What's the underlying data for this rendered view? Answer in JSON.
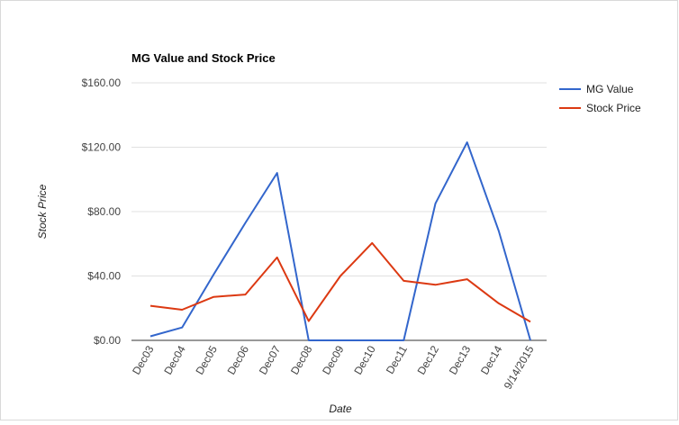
{
  "chart_data": {
    "type": "line",
    "title": "MG Value and Stock Price",
    "xlabel": "Date",
    "ylabel": "Stock Price",
    "categories": [
      "Dec03",
      "Dec04",
      "Dec05",
      "Dec06",
      "Dec07",
      "Dec08",
      "Dec09",
      "Dec10",
      "Dec11",
      "Dec12",
      "Dec13",
      "Dec14",
      "9/14/2015"
    ],
    "ylim": [
      0,
      160
    ],
    "yticks": [
      {
        "value": 0,
        "label": "$0.00"
      },
      {
        "value": 40,
        "label": "$40.00"
      },
      {
        "value": 80,
        "label": "$80.00"
      },
      {
        "value": 120,
        "label": "$120.00"
      },
      {
        "value": 160,
        "label": "$160.00"
      }
    ],
    "grid": true,
    "legend_position": "top-right",
    "series": [
      {
        "name": "MG Value",
        "color": "#3366cc",
        "values": [
          2.5,
          8,
          41,
          73,
          104,
          0,
          0,
          0,
          0,
          85,
          123,
          68,
          0
        ]
      },
      {
        "name": "Stock Price",
        "color": "#dc3912",
        "values": [
          21.5,
          19,
          27,
          28.5,
          51.5,
          12,
          40,
          60.5,
          37,
          34.5,
          38,
          23,
          11.5
        ]
      }
    ]
  }
}
